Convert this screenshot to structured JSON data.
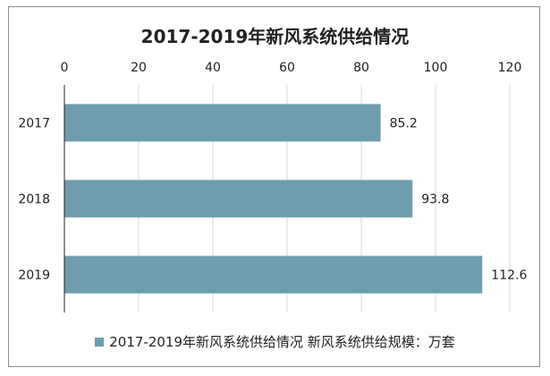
{
  "chart_data": {
    "type": "bar",
    "orientation": "horizontal",
    "title": "2017-2019年新风系统供给情况",
    "categories": [
      "2017",
      "2018",
      "2019"
    ],
    "series": [
      {
        "name": "2017-2019年新风系统供给情况 新风系统供给规模：万套",
        "values": [
          85.2,
          93.8,
          112.6
        ]
      }
    ],
    "data_labels": [
      "85.2",
      "93.8",
      "112.6"
    ],
    "xlim": [
      0,
      120
    ],
    "xticks": [
      0,
      20,
      40,
      60,
      80,
      100,
      120
    ],
    "x_axis_position": "top",
    "grid": "vertical",
    "legend_position": "bottom",
    "bar_color": "#6f9db0",
    "grid_color": "#d9d9d9"
  }
}
